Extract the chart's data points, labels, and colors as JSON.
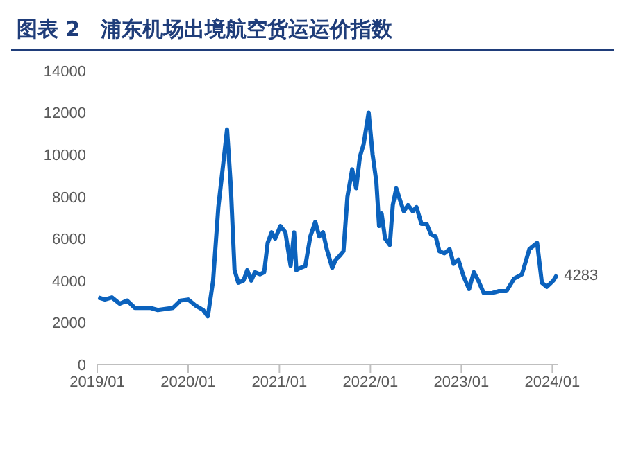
{
  "chart_data": {
    "type": "line",
    "title": "图表 2　浦东机场出境航空货运运价指数",
    "x": [
      "2019-01-05",
      "2019-02-01",
      "2019-03-01",
      "2019-04-01",
      "2019-05-01",
      "2019-06-01",
      "2019-08-01",
      "2019-09-01",
      "2019-10-01",
      "2019-11-01",
      "2019-12-01",
      "2020-01-01",
      "2020-02-01",
      "2020-03-01",
      "2020-03-20",
      "2020-04-10",
      "2020-05-01",
      "2020-05-20",
      "2020-06-05",
      "2020-06-20",
      "2020-07-05",
      "2020-07-20",
      "2020-08-10",
      "2020-08-25",
      "2020-09-10",
      "2020-09-25",
      "2020-10-15",
      "2020-11-01",
      "2020-11-15",
      "2020-12-01",
      "2020-12-15",
      "2021-01-05",
      "2021-01-25",
      "2021-02-15",
      "2021-03-01",
      "2021-03-10",
      "2021-03-25",
      "2021-04-15",
      "2021-05-05",
      "2021-05-25",
      "2021-06-10",
      "2021-06-25",
      "2021-07-10",
      "2021-08-01",
      "2021-08-15",
      "2021-09-01",
      "2021-09-15",
      "2021-10-01",
      "2021-10-20",
      "2021-11-05",
      "2021-11-20",
      "2021-12-05",
      "2021-12-25",
      "2022-01-10",
      "2022-01-25",
      "2022-02-05",
      "2022-02-15",
      "2022-03-01",
      "2022-03-20",
      "2022-04-01",
      "2022-04-15",
      "2022-05-01",
      "2022-05-15",
      "2022-06-01",
      "2022-06-20",
      "2022-07-05",
      "2022-07-25",
      "2022-08-15",
      "2022-09-01",
      "2022-09-20",
      "2022-10-05",
      "2022-10-25",
      "2022-11-15",
      "2022-12-01",
      "2022-12-20",
      "2023-01-10",
      "2023-02-01",
      "2023-02-20",
      "2023-03-10",
      "2023-04-01",
      "2023-05-01",
      "2023-06-01",
      "2023-07-01",
      "2023-08-01",
      "2023-09-01",
      "2023-10-01",
      "2023-11-01",
      "2023-11-20",
      "2023-12-10",
      "2024-01-05",
      "2024-01-20"
    ],
    "series": [
      {
        "color": "#0b62bd",
        "values": [
          3200,
          3100,
          3200,
          2900,
          3050,
          2700,
          2700,
          2600,
          2650,
          2700,
          3050,
          3100,
          2800,
          2600,
          2300,
          4000,
          7500,
          9500,
          11200,
          8500,
          4500,
          3900,
          4000,
          4500,
          4000,
          4400,
          4300,
          4400,
          5800,
          6300,
          6000,
          6600,
          6300,
          4700,
          6300,
          4500,
          4600,
          4700,
          6100,
          6800,
          6100,
          6300,
          5500,
          4600,
          5000,
          5200,
          5400,
          8000,
          9300,
          8400,
          9900,
          10500,
          12000,
          10000,
          8700,
          6600,
          7200,
          6000,
          5700,
          7600,
          8400,
          7800,
          7300,
          7600,
          7300,
          7500,
          6700,
          6700,
          6200,
          6100,
          5400,
          5300,
          5500,
          4800,
          5000,
          4200,
          3600,
          4400,
          4000,
          3400,
          3400,
          3500,
          3500,
          4100,
          4300,
          5500,
          5800,
          3900,
          3700,
          4000,
          4283
        ]
      }
    ],
    "xlim": [
      "2019-01-01",
      "2024-01-25"
    ],
    "xticks": [
      {
        "value": "2019-01-01",
        "label": "2019/01"
      },
      {
        "value": "2020-01-01",
        "label": "2020/01"
      },
      {
        "value": "2021-01-01",
        "label": "2021/01"
      },
      {
        "value": "2022-01-01",
        "label": "2022/01"
      },
      {
        "value": "2023-01-01",
        "label": "2023/01"
      },
      {
        "value": "2024-01-01",
        "label": "2024/01"
      }
    ],
    "ylim": [
      0,
      14000
    ],
    "yticks": [
      0,
      2000,
      4000,
      6000,
      8000,
      10000,
      12000,
      14000
    ],
    "annotations": [
      {
        "text": "4283",
        "x": "2024-01-20",
        "y": 4283
      }
    ],
    "grid": false,
    "legend": false,
    "marker": "none",
    "line_style": "solid"
  }
}
